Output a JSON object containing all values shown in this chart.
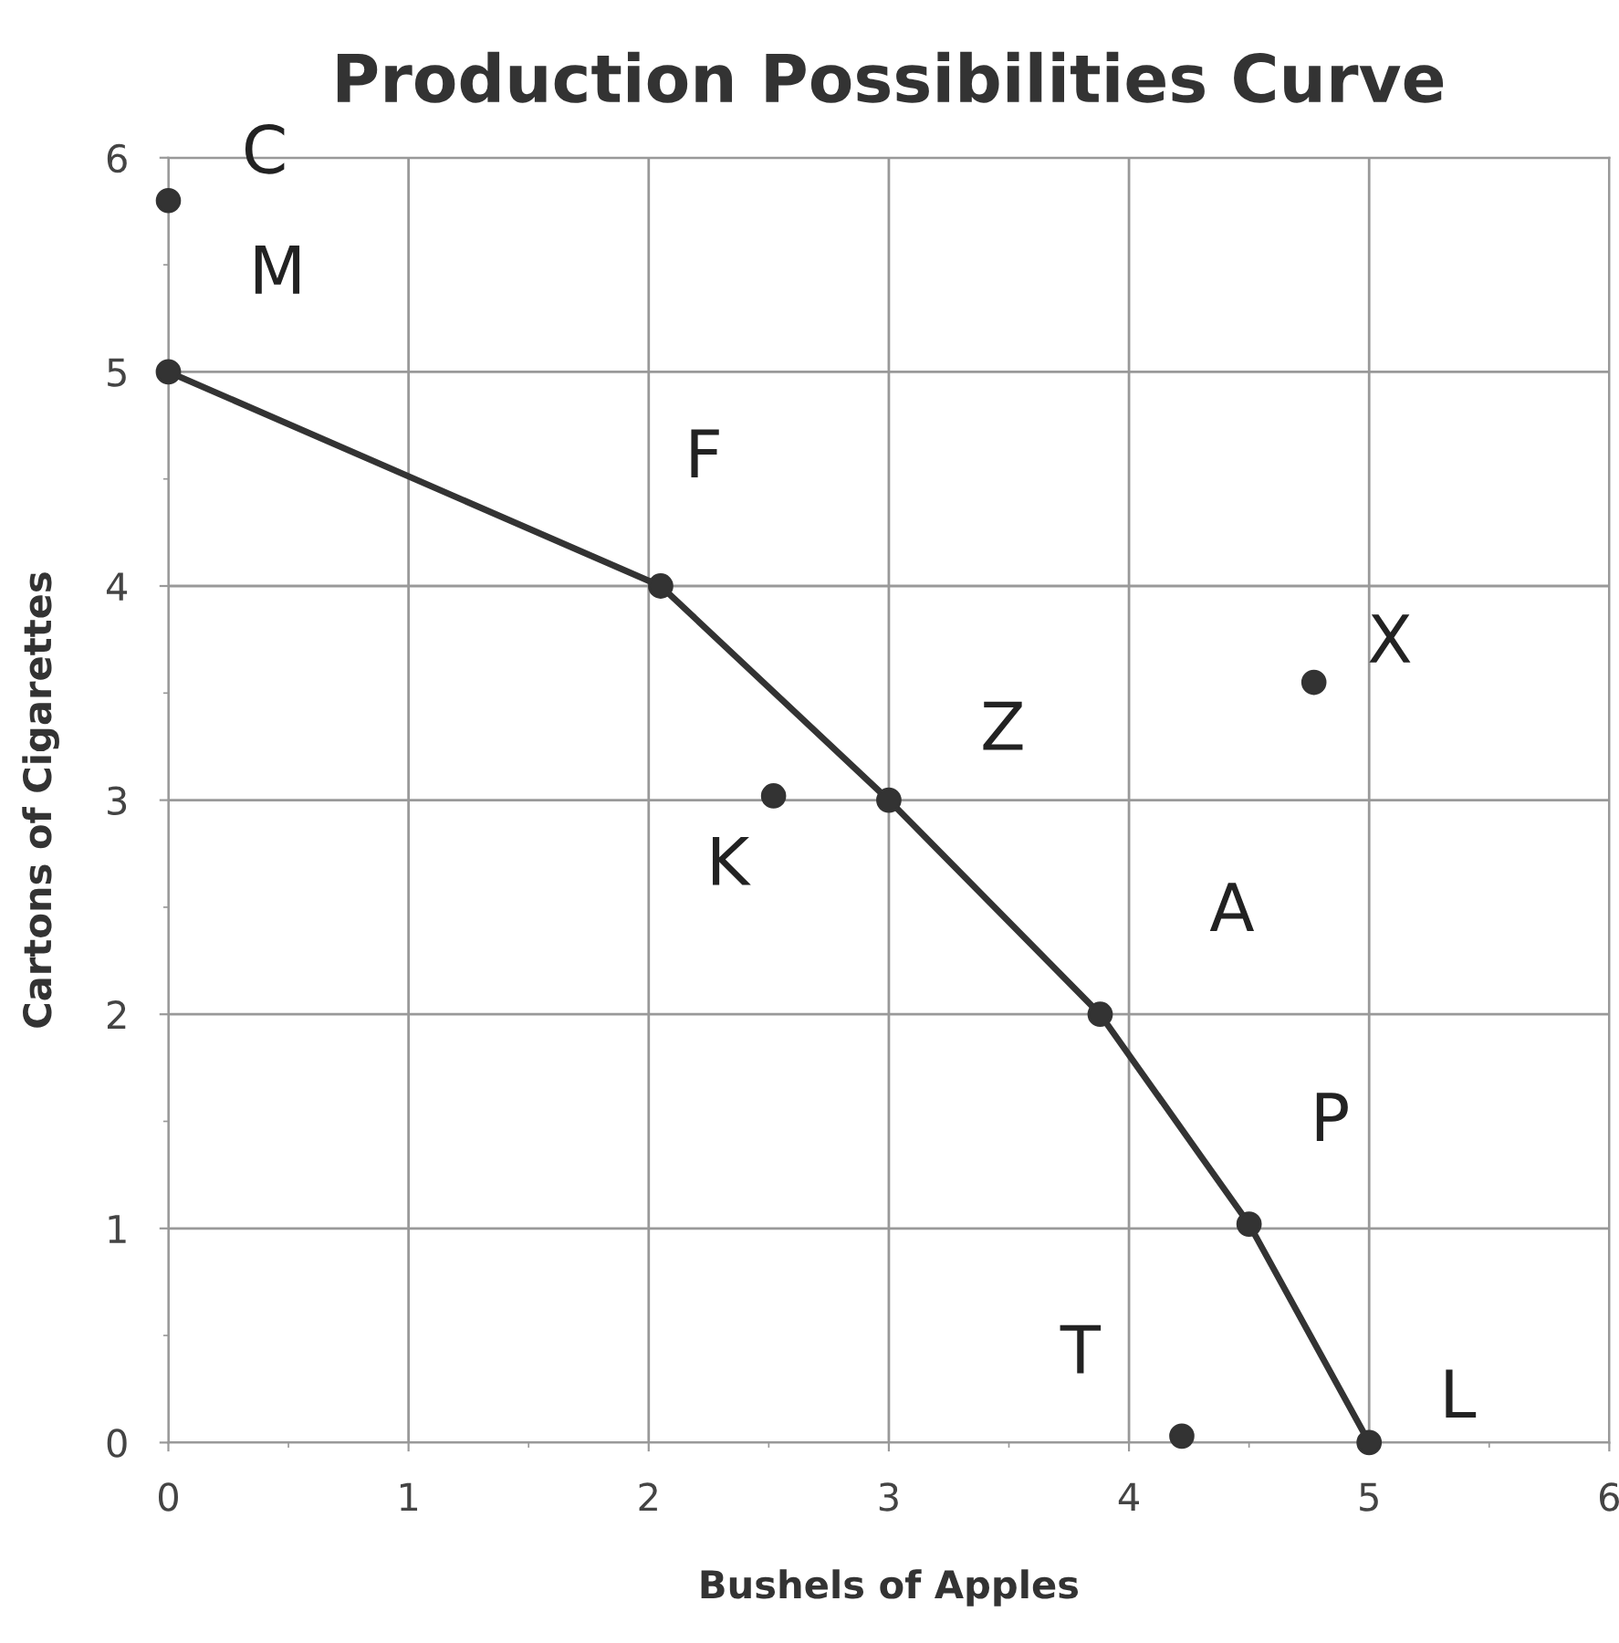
{
  "chart_data": {
    "type": "line",
    "title": "Production Possibilities Curve",
    "xlabel": "Bushels of Apples",
    "ylabel": "Cartons of Cigarettes",
    "series": [
      {
        "color": "#333333",
        "x": [
          0,
          2.05,
          3,
          3.88,
          4.5,
          5
        ],
        "values": [
          5,
          4,
          3,
          2,
          1.02,
          0
        ],
        "marker": "circle"
      },
      {
        "type": "scatter",
        "color": "#333333",
        "x": [
          0,
          2.52,
          4.77,
          4.22
        ],
        "values": [
          5.8,
          3.02,
          3.55,
          0.03
        ],
        "marker": "circle"
      }
    ],
    "annotations": [
      {
        "text": "C",
        "x": 0,
        "y": 5.8
      },
      {
        "text": "M",
        "x": 0,
        "y": 5
      },
      {
        "text": "F",
        "x": 2.05,
        "y": 4
      },
      {
        "text": "Z",
        "x": 3,
        "y": 3
      },
      {
        "text": "K",
        "x": 2.52,
        "y": 3.02
      },
      {
        "text": "A",
        "x": 3.88,
        "y": 2
      },
      {
        "text": "P",
        "x": 4.5,
        "y": 1.02
      },
      {
        "text": "L",
        "x": 5,
        "y": 0
      },
      {
        "text": "T",
        "x": 4.22,
        "y": 0.03
      },
      {
        "text": "X",
        "x": 4.77,
        "y": 3.55
      }
    ],
    "xlim": [
      0,
      6
    ],
    "ylim": [
      0,
      6
    ],
    "xticks": [
      0,
      1,
      2,
      3,
      4,
      5,
      6
    ],
    "yticks": [
      0,
      1,
      2,
      3,
      4,
      5,
      6
    ],
    "grid": true,
    "line_style": "solid"
  }
}
